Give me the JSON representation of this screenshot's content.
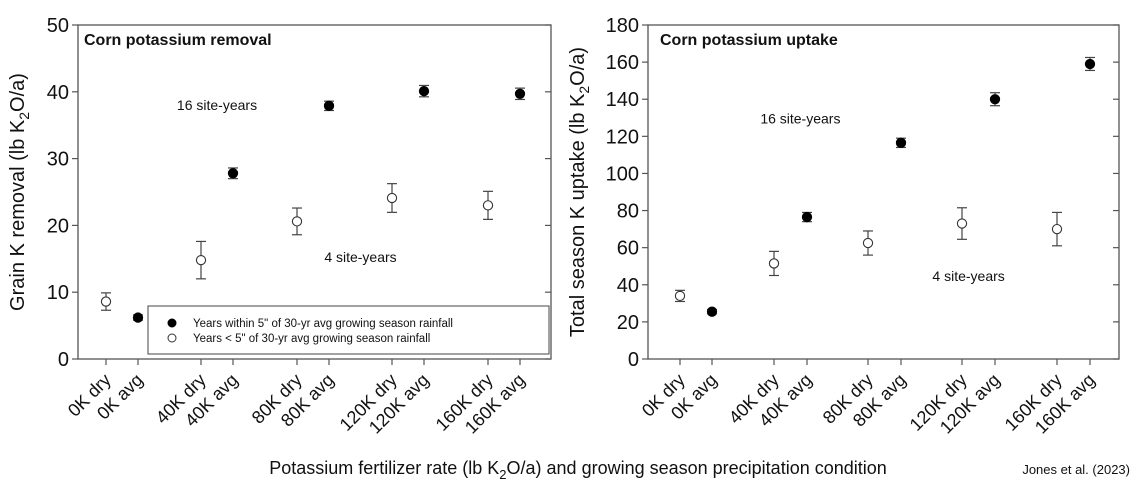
{
  "chart_data": [
    {
      "type": "scatter",
      "title": "Corn potassium removal",
      "ylabel": "Grain K removal (lb K₂O/a)",
      "ylim": [
        0,
        50
      ],
      "yticks": [
        0,
        10,
        20,
        30,
        40,
        50
      ],
      "categories": [
        "0K dry",
        "0K avg",
        "40K dry",
        "40K avg",
        "80K dry",
        "80K avg",
        "120K dry",
        "120K avg",
        "160K dry",
        "160K avg"
      ],
      "series": [
        {
          "name": "Years within 5\" of 30-yr avg growing season rainfall",
          "marker": "filled-circle",
          "categories": [
            "0K avg",
            "40K avg",
            "80K avg",
            "120K avg",
            "160K avg"
          ],
          "values": [
            6.2,
            27.8,
            37.9,
            40.1,
            39.7
          ],
          "error": [
            0.4,
            0.8,
            0.7,
            0.85,
            0.85
          ]
        },
        {
          "name": "Years < 5\" of 30-yr avg growing season rainfall",
          "marker": "open-circle",
          "categories": [
            "0K dry",
            "40K dry",
            "80K dry",
            "120K dry",
            "160K dry"
          ],
          "values": [
            8.6,
            14.8,
            20.6,
            24.1,
            23.0
          ],
          "error": [
            1.3,
            2.8,
            2.0,
            2.15,
            2.1
          ]
        }
      ],
      "annotations": [
        {
          "text": "16 site-years",
          "x": 2.5,
          "y": 37.3
        },
        {
          "text": "4 site-years",
          "x": 5.5,
          "y": 14.5
        }
      ],
      "legend": {
        "placement": "bottom-right",
        "entries": [
          "Years within 5\" of 30-yr avg growing season rainfall",
          "Years < 5\" of 30-yr avg growing season rainfall"
        ]
      },
      "grid": false
    },
    {
      "type": "scatter",
      "title": "Corn potassium uptake",
      "ylabel": "Total season K uptake (lb K₂O/a)",
      "ylim": [
        0,
        180
      ],
      "yticks": [
        0,
        20,
        40,
        60,
        80,
        100,
        120,
        140,
        160,
        180
      ],
      "categories": [
        "0K dry",
        "0K avg",
        "40K dry",
        "40K avg",
        "80K dry",
        "80K avg",
        "120K dry",
        "120K avg",
        "160K dry",
        "160K avg"
      ],
      "series": [
        {
          "name": "Years within 5\" of 30-yr avg growing season rainfall",
          "marker": "filled-circle",
          "categories": [
            "0K avg",
            "40K avg",
            "80K avg",
            "120K avg",
            "160K avg"
          ],
          "values": [
            25.5,
            76.5,
            116.5,
            140,
            159
          ],
          "error": [
            1.2,
            2.5,
            2.5,
            3.5,
            3.5
          ]
        },
        {
          "name": "Years < 5\" of 30-yr avg growing season rainfall",
          "marker": "open-circle",
          "categories": [
            "0K dry",
            "40K dry",
            "80K dry",
            "120K dry",
            "160K dry"
          ],
          "values": [
            34,
            51.5,
            62.5,
            73,
            70
          ],
          "error": [
            3.0,
            6.5,
            6.5,
            8.5,
            9.0
          ]
        }
      ],
      "annotations": [
        {
          "text": "16 site-years",
          "x": 2.8,
          "y": 127
        },
        {
          "text": "4 site-years",
          "x": 6.2,
          "y": 42
        }
      ],
      "grid": false
    }
  ],
  "shared": {
    "xlabel_pre": "Potassium fertilizer rate (lb K",
    "xlabel_sub": "2",
    "xlabel_post": "O/a) and growing season precipitation condition",
    "citation": "Jones et al. (2023)"
  }
}
